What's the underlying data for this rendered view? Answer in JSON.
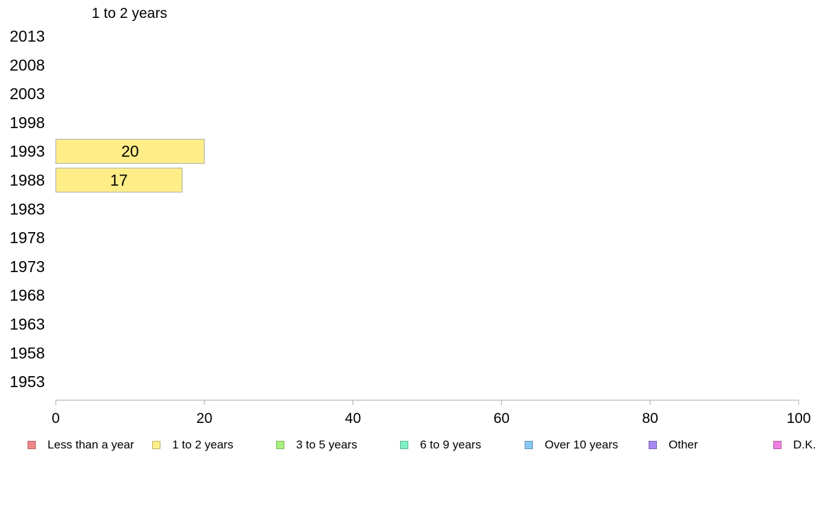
{
  "chart_data": {
    "type": "bar",
    "orientation": "horizontal",
    "title": "1 to 2 years",
    "categories": [
      "2013",
      "2008",
      "2003",
      "1998",
      "1993",
      "1988",
      "1983",
      "1978",
      "1973",
      "1968",
      "1963",
      "1958",
      "1953"
    ],
    "series": [
      {
        "name": "1 to 2 years",
        "color": "#ffee88",
        "values": [
          null,
          null,
          null,
          null,
          20,
          17,
          null,
          null,
          null,
          null,
          null,
          null,
          null
        ]
      }
    ],
    "xlim": [
      0,
      100
    ],
    "xticks": [
      0,
      20,
      40,
      60,
      80,
      100
    ],
    "grid": false,
    "legend_position": "bottom"
  },
  "legend": [
    {
      "label": "Less than a year",
      "color": "#f08888"
    },
    {
      "label": "1 to 2 years",
      "color": "#ffee88"
    },
    {
      "label": "3 to 5 years",
      "color": "#aaf080"
    },
    {
      "label": "6 to 9 years",
      "color": "#80f0c8"
    },
    {
      "label": "Over 10 years",
      "color": "#88c8f0"
    },
    {
      "label": "Other",
      "color": "#a888f0"
    },
    {
      "label": "D.K.",
      "color": "#f080e0"
    }
  ]
}
